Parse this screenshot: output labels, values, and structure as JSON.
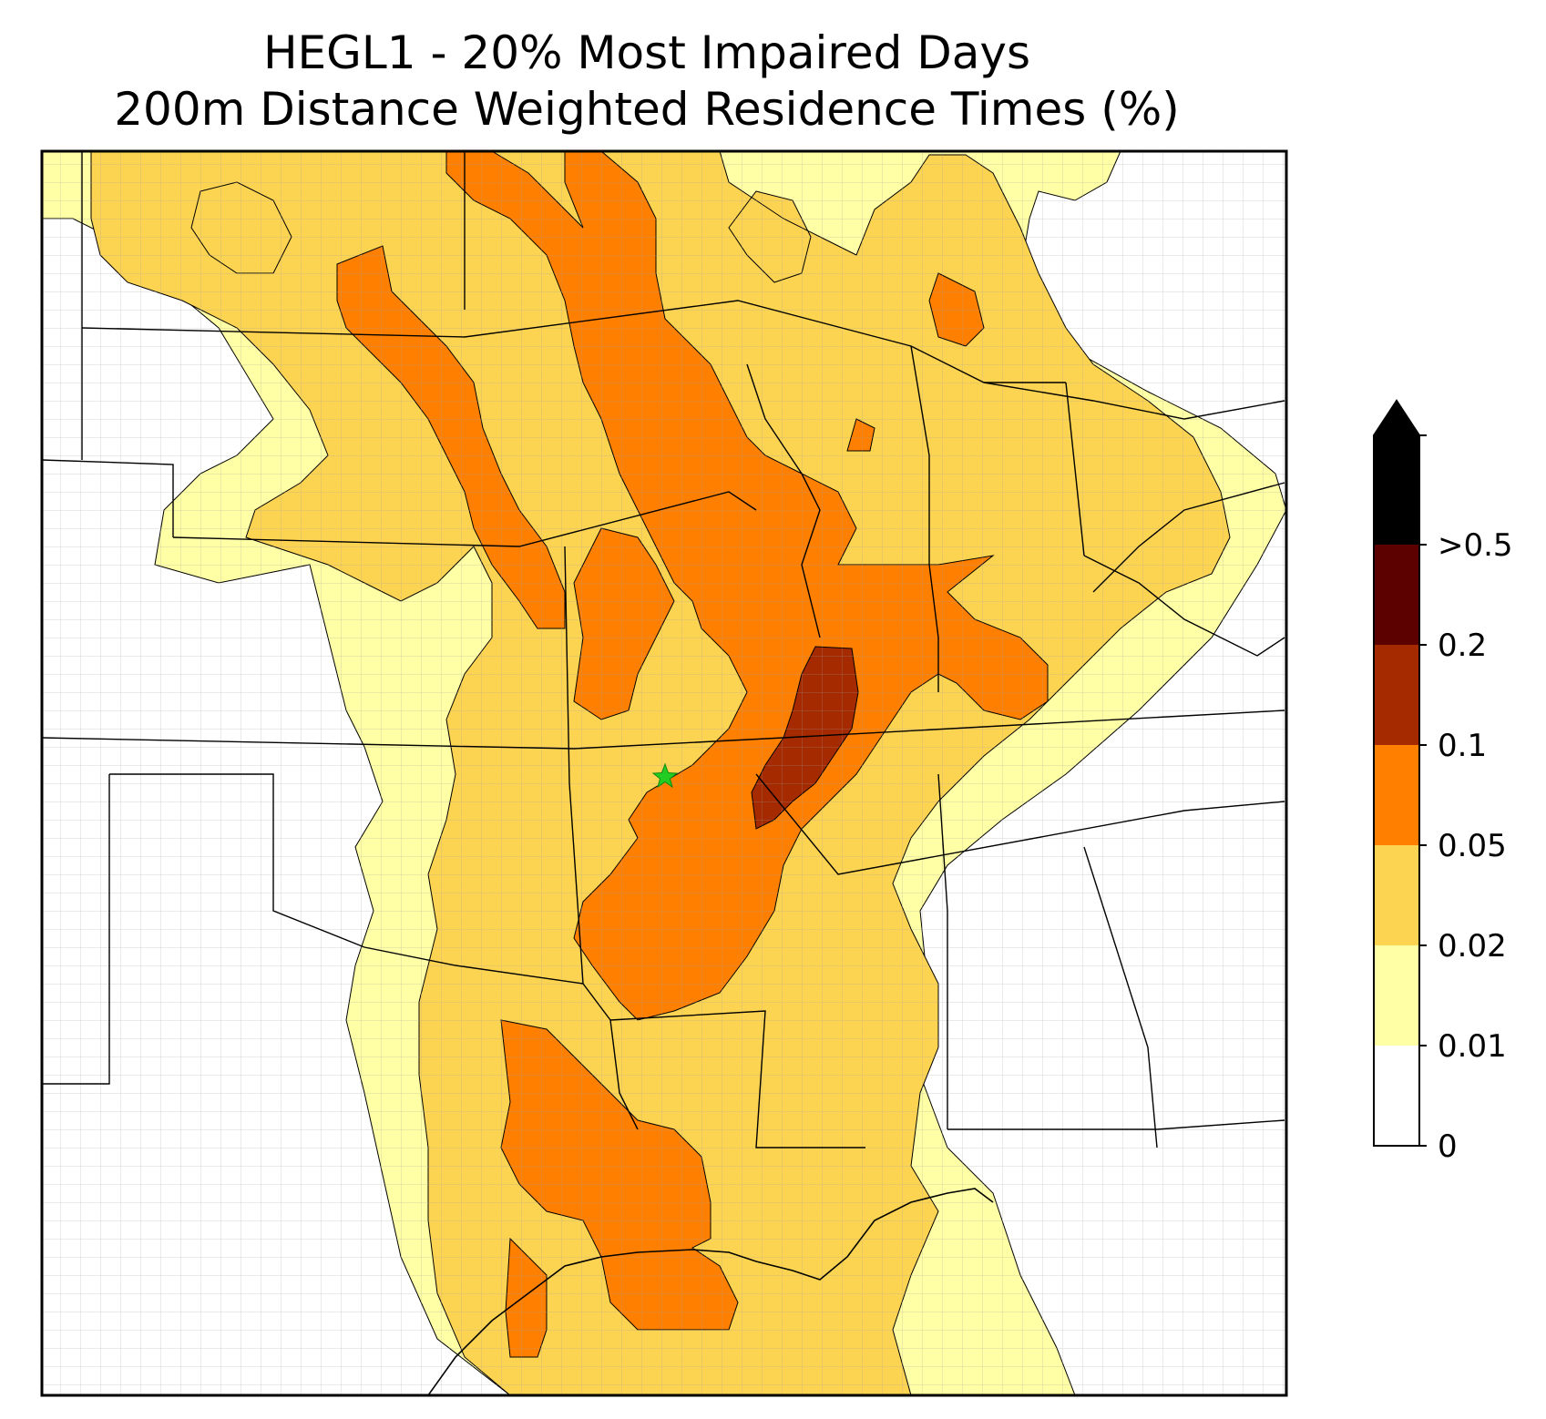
{
  "title": {
    "line1": "HEGL1 - 20% Most Impaired Days",
    "line2": "200m Distance Weighted Residence Times (%)"
  },
  "colorbar": {
    "labels": [
      "0",
      "0.01",
      "0.02",
      "0.05",
      "0.1",
      "0.2",
      ">0.5"
    ],
    "bins": [
      {
        "from": "0",
        "to": "0.01",
        "color": "#ffffff"
      },
      {
        "from": "0.01",
        "to": "0.02",
        "color": "#ffffa6"
      },
      {
        "from": "0.02",
        "to": "0.05",
        "color": "#fdd452"
      },
      {
        "from": "0.05",
        "to": "0.1",
        "color": "#ff8000"
      },
      {
        "from": "0.1",
        "to": "0.2",
        "color": "#a52a00"
      },
      {
        "from": "0.2",
        "to": ">0.5",
        "color": "#5c0000"
      },
      {
        "from": ">0.5",
        "to": "",
        "color": "#000000"
      }
    ],
    "extend": "max"
  },
  "site_marker": {
    "symbol": "star",
    "color": "#22cc22"
  },
  "colors": {
    "state_border": "#000000",
    "county_border": "#a0a0a0"
  }
}
